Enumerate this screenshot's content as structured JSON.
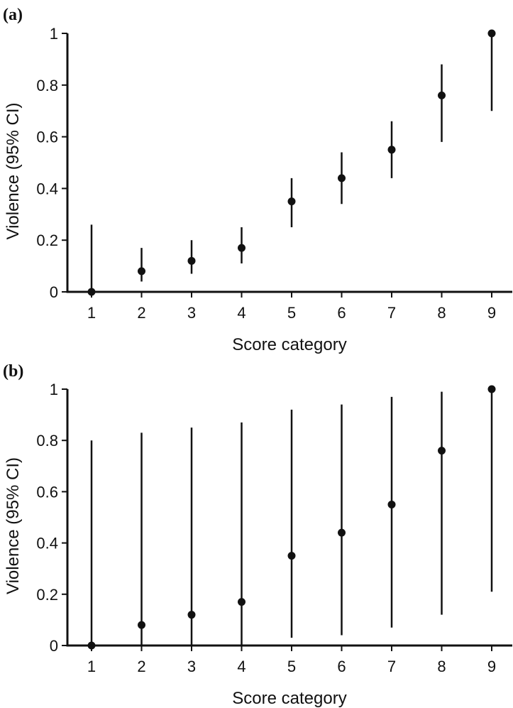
{
  "colors": {
    "ink": "#111111",
    "background": "#ffffff"
  },
  "chart_data": [
    {
      "type": "scatter",
      "panel_label": "(a)",
      "title": "",
      "xlabel": "Score category",
      "ylabel": "Violence (95% CI)",
      "categories": [
        "1",
        "2",
        "3",
        "4",
        "5",
        "6",
        "7",
        "8",
        "9"
      ],
      "yticks": [
        "0",
        "0.2",
        "0.4",
        "0.6",
        "0.8",
        "1"
      ],
      "ylim": [
        0,
        1
      ],
      "series": [
        {
          "values": [
            0.0,
            0.08,
            0.12,
            0.17,
            0.35,
            0.44,
            0.55,
            0.76,
            1.0
          ],
          "ci_lower": [
            0.0,
            0.04,
            0.07,
            0.11,
            0.25,
            0.34,
            0.44,
            0.58,
            0.7
          ],
          "ci_upper": [
            0.26,
            0.17,
            0.2,
            0.25,
            0.44,
            0.54,
            0.66,
            0.88,
            1.0
          ]
        }
      ],
      "grid": false,
      "legend": "none"
    },
    {
      "type": "scatter",
      "panel_label": "(b)",
      "title": "",
      "xlabel": "Score category",
      "ylabel": "Violence (95% CI)",
      "categories": [
        "1",
        "2",
        "3",
        "4",
        "5",
        "6",
        "7",
        "8",
        "9"
      ],
      "yticks": [
        "0",
        "0.2",
        "0.4",
        "0.6",
        "0.8",
        "1"
      ],
      "ylim": [
        0,
        1
      ],
      "series": [
        {
          "values": [
            0.0,
            0.08,
            0.12,
            0.17,
            0.35,
            0.44,
            0.55,
            0.76,
            1.0
          ],
          "ci_lower": [
            0.0,
            0.0,
            0.0,
            0.0,
            0.03,
            0.04,
            0.07,
            0.12,
            0.21
          ],
          "ci_upper": [
            0.8,
            0.83,
            0.85,
            0.87,
            0.92,
            0.94,
            0.97,
            0.99,
            1.0
          ]
        }
      ],
      "grid": false,
      "legend": "none"
    }
  ]
}
